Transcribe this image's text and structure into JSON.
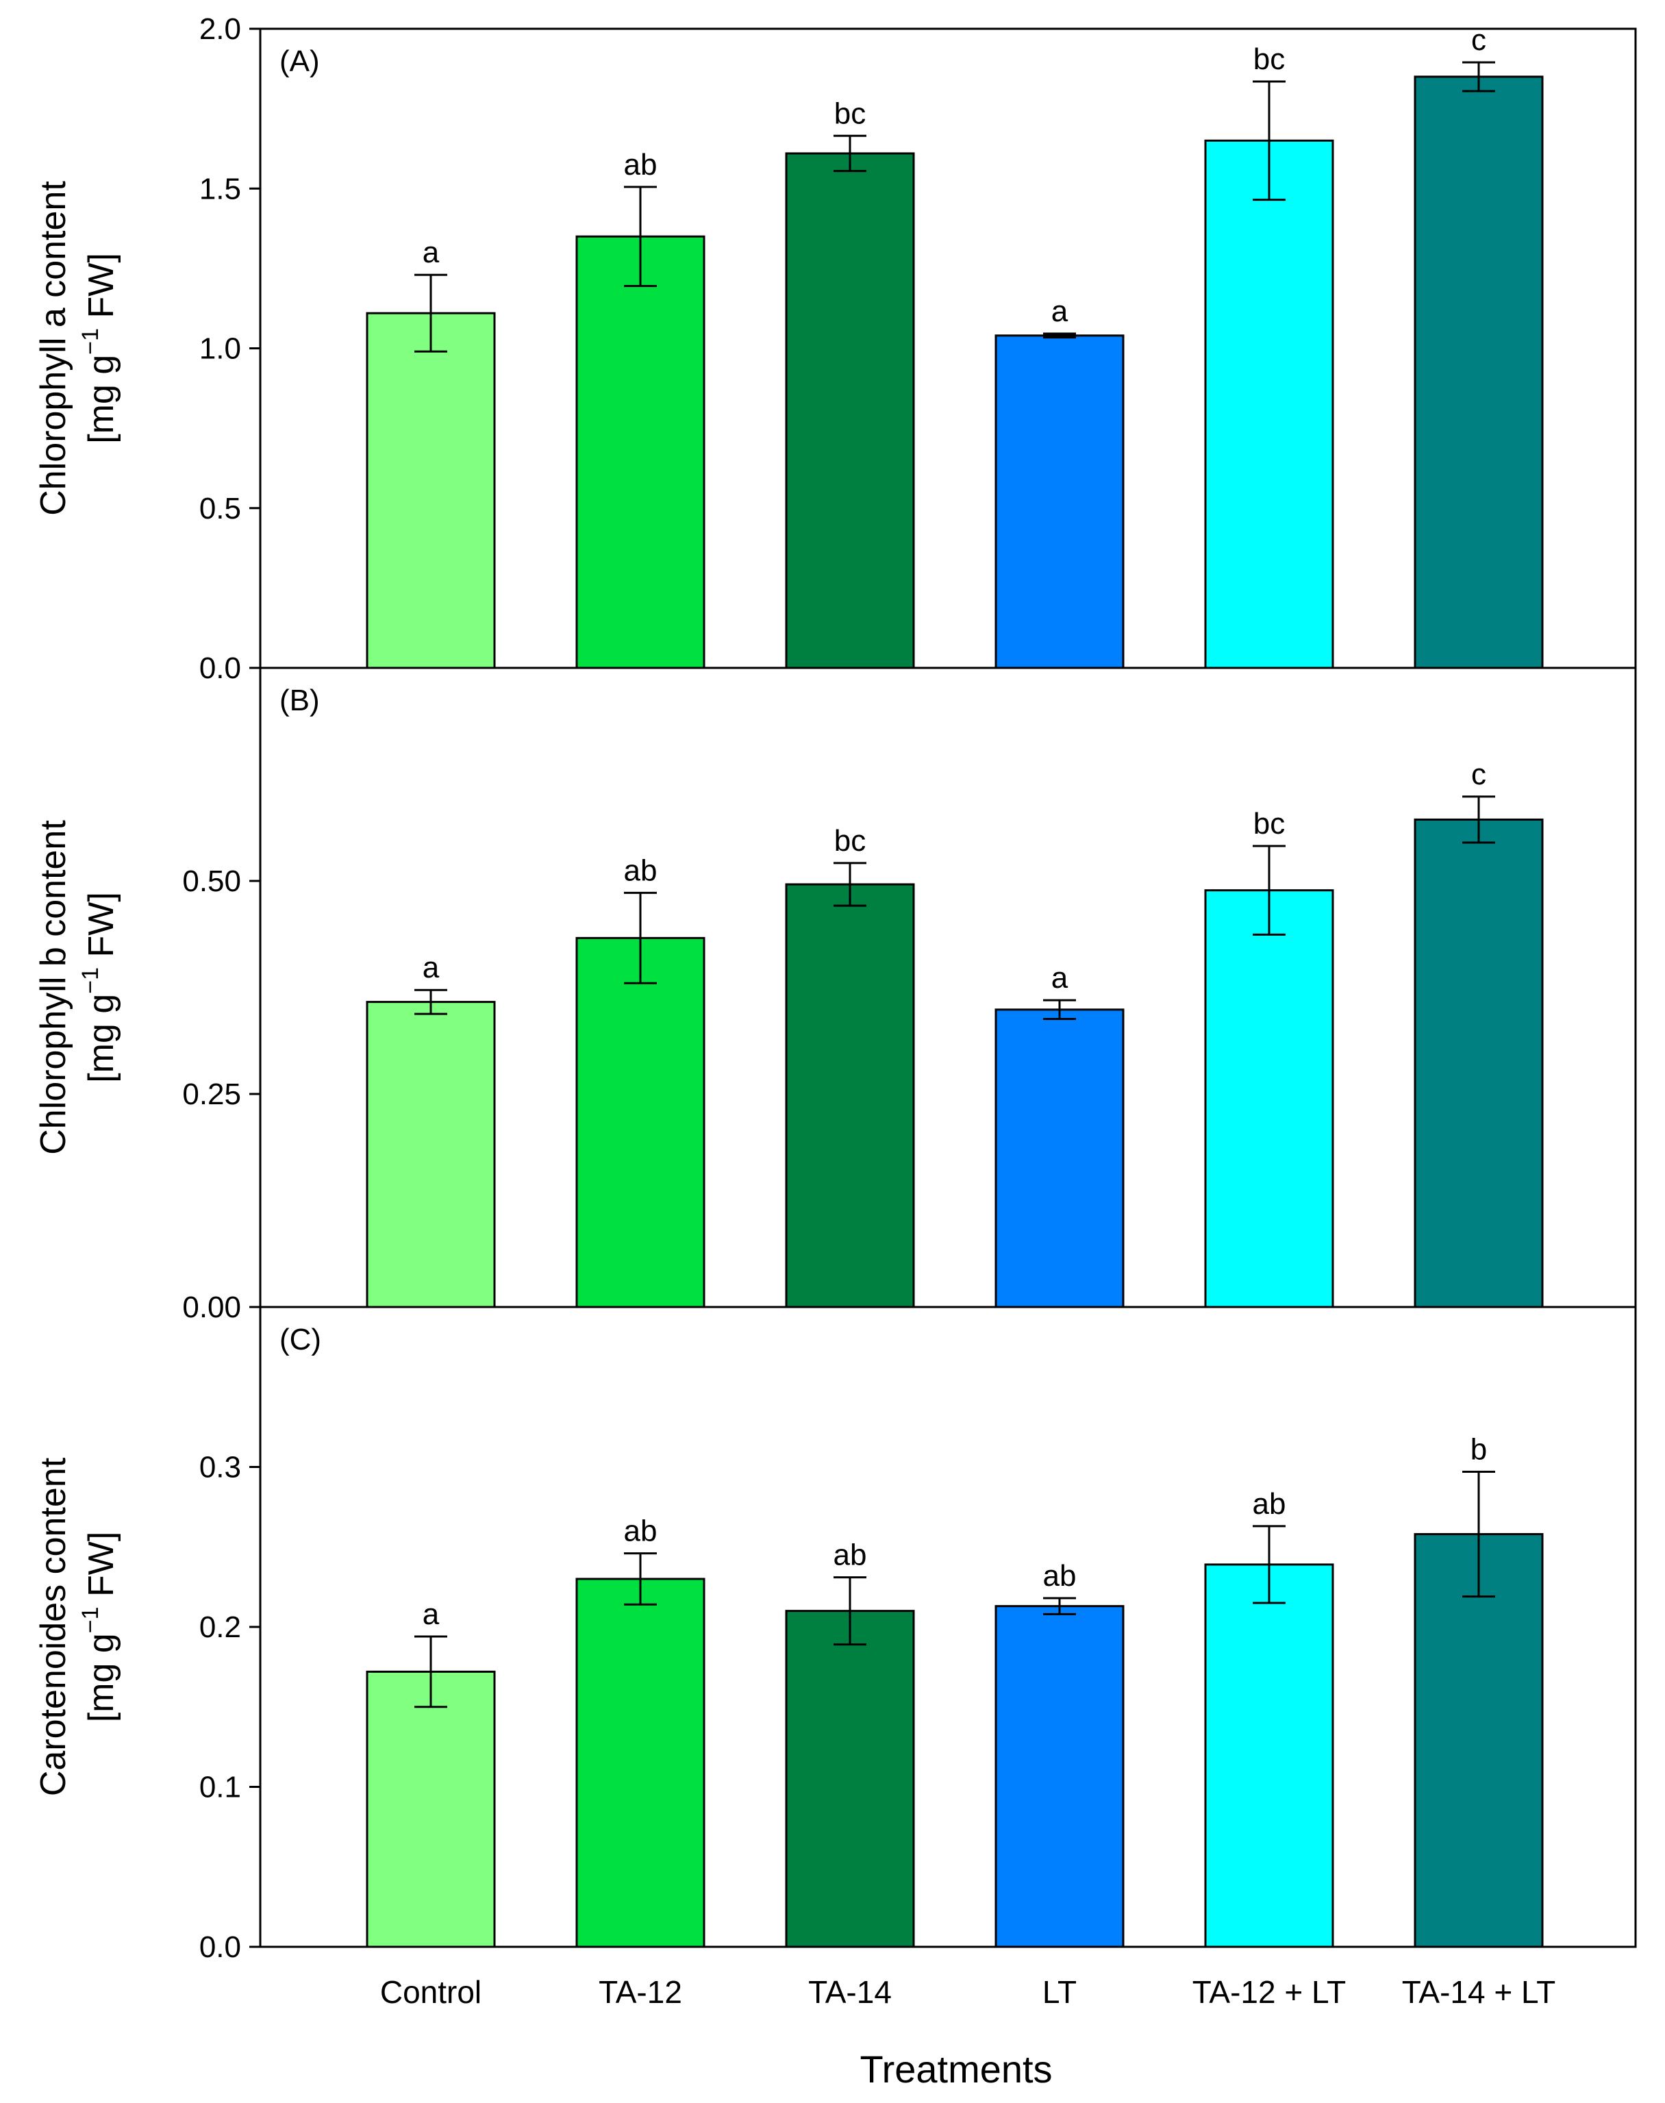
{
  "chart_data": [
    {
      "type": "bar",
      "panel": "(A)",
      "ylabel_line1": "Chlorophyll a content",
      "ylabel_line2": "[mg g",
      "ylabel_sup": "−1",
      "ylabel_line2b": " FW]",
      "ylim": [
        0,
        2.0
      ],
      "yticks": [
        "0.0",
        "0.5",
        "1.0",
        "1.5",
        "2.0"
      ],
      "categories": [
        "Control",
        "TA-12",
        "TA-14",
        "LT",
        "TA-12 + LT",
        "TA-14 + LT"
      ],
      "values": [
        1.11,
        1.35,
        1.61,
        1.04,
        1.65,
        1.85
      ],
      "errors": [
        0.12,
        0.155,
        0.055,
        0.006,
        0.185,
        0.045
      ],
      "letters": [
        "a",
        "ab",
        "bc",
        "a",
        "bc",
        "c"
      ]
    },
    {
      "type": "bar",
      "panel": "(B)",
      "ylabel_line1": "Chlorophyll b content",
      "ylabel_line2": "[mg g",
      "ylabel_sup": "−1",
      "ylabel_line2b": " FW]",
      "ylim": [
        0,
        0.75
      ],
      "yticks": [
        "0.00",
        "0.25",
        "0.50"
      ],
      "categories": [
        "Control",
        "TA-12",
        "TA-14",
        "LT",
        "TA-12 + LT",
        "TA-14 + LT"
      ],
      "values": [
        0.358,
        0.433,
        0.496,
        0.349,
        0.489,
        0.572
      ],
      "errors": [
        0.014,
        0.053,
        0.025,
        0.011,
        0.052,
        0.027
      ],
      "letters": [
        "a",
        "ab",
        "bc",
        "a",
        "bc",
        "c"
      ]
    },
    {
      "type": "bar",
      "panel": "(C)",
      "ylabel_line1": "Carotenoides content",
      "ylabel_line2": "[mg g",
      "ylabel_sup": "−1",
      "ylabel_line2b": " FW]",
      "ylim": [
        0,
        0.4
      ],
      "yticks": [
        "0.0",
        "0.1",
        "0.2",
        "0.3"
      ],
      "categories": [
        "Control",
        "TA-12",
        "TA-14",
        "LT",
        "TA-12 + LT",
        "TA-14 + LT"
      ],
      "values": [
        0.172,
        0.23,
        0.21,
        0.213,
        0.239,
        0.258
      ],
      "errors": [
        0.022,
        0.016,
        0.021,
        0.005,
        0.024,
        0.039
      ],
      "letters": [
        "a",
        "ab",
        "ab",
        "ab",
        "ab",
        "b"
      ]
    }
  ],
  "bar_colors": [
    "#80ff80",
    "#00e040",
    "#008040",
    "#0080ff",
    "#00ffff",
    "#008080"
  ],
  "xlabel": "Treatments"
}
